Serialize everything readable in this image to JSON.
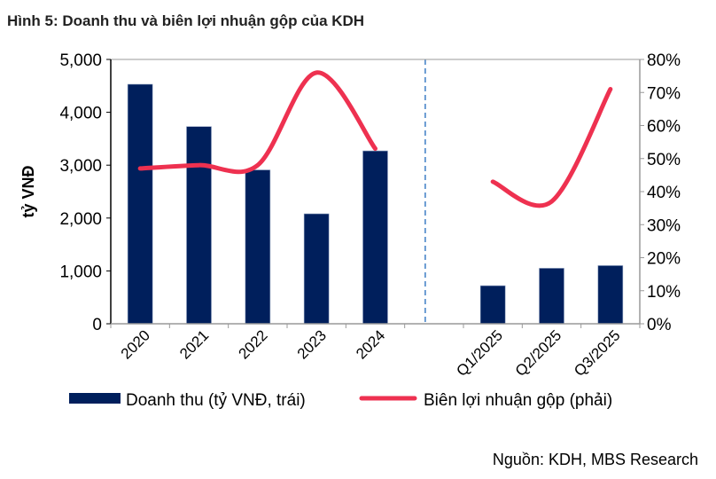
{
  "title": "Hình 5: Doanh thu và biên lợi nhuận gộp của KDH",
  "source": "Nguồn: KDH, MBS Research",
  "colors": {
    "bar": "#001F5C",
    "line": "#EE3150",
    "divider": "#3C7DC4"
  },
  "chart_data": {
    "type": "bar+line",
    "categories": [
      "2020",
      "2021",
      "2022",
      "2023",
      "2024",
      "",
      "Q1/2025",
      "Q2/2025",
      "Q3/2025"
    ],
    "ylabel": "tỷ VNĐ",
    "ylim": [
      0,
      5000
    ],
    "yticks": [
      "0",
      "1,000",
      "2,000",
      "3,000",
      "4,000",
      "5,000"
    ],
    "y2lim": [
      0,
      80
    ],
    "y2ticks": [
      "0%",
      "10%",
      "20%",
      "30%",
      "40%",
      "50%",
      "60%",
      "70%",
      "80%"
    ],
    "divider_after": "2024",
    "series": [
      {
        "name": "Doanh thu (tỷ VNĐ, trái)",
        "type": "bar",
        "axis": "left",
        "values": [
          4530,
          3730,
          2910,
          2080,
          3270,
          null,
          720,
          1050,
          1100
        ]
      },
      {
        "name": "Biên lợi nhuận gộp (phải)",
        "type": "line",
        "axis": "right",
        "smooth": true,
        "segments": [
          {
            "categories": [
              "2020",
              "2021",
              "2022",
              "2023",
              "2024"
            ],
            "values": [
              47,
              48,
              48,
              76,
              53
            ]
          },
          {
            "categories": [
              "Q1/2025",
              "Q2/2025",
              "Q3/2025"
            ],
            "values": [
              43,
              37,
              71
            ]
          }
        ]
      }
    ],
    "legend": "bottom",
    "grid": false
  }
}
